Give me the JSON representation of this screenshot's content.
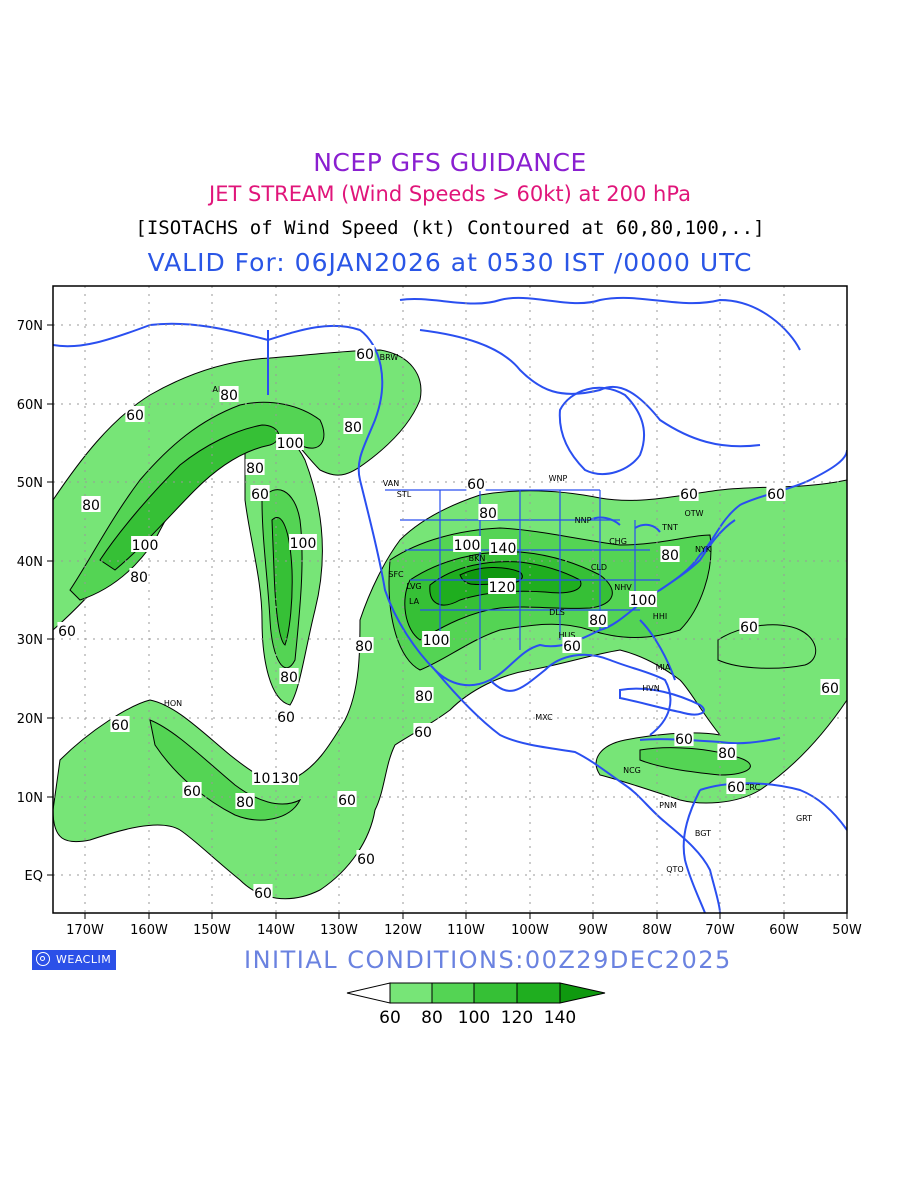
{
  "titles": {
    "line1": "NCEP GFS GUIDANCE",
    "line2": "JET STREAM (Wind Speeds > 60kt) at 200 hPa",
    "line3": "[ISOTACHS of Wind Speed (kt) Contoured at 60,80,100,..]",
    "line4": "VALID For: 06JAN2026 at 0530 IST /0000 UTC"
  },
  "initial_conditions": "INITIAL CONDITIONS:00Z29DEC2025",
  "logo": {
    "text": "WEACLIM",
    "icon": "weaclim-logo-icon"
  },
  "axes": {
    "lon_labels": [
      "170W",
      "160W",
      "150W",
      "140W",
      "130W",
      "120W",
      "110W",
      "100W",
      "90W",
      "80W",
      "70W",
      "60W",
      "50W"
    ],
    "lat_labels": [
      "70N",
      "60N",
      "50N",
      "40N",
      "30N",
      "20N",
      "10N",
      "EQ"
    ]
  },
  "colorbar": {
    "labels": [
      "60",
      "80",
      "100",
      "120",
      "140"
    ],
    "colors": [
      "#ffffff",
      "#77e577",
      "#54d454",
      "#36c036",
      "#1fae1f",
      "#0f990f"
    ]
  },
  "contour_labels": [
    "60",
    "80",
    "100",
    "120",
    "140",
    "130"
  ],
  "stations": [
    "ANC",
    "BRW",
    "VAN",
    "STL",
    "WNP",
    "NNP",
    "OTW",
    "TNT",
    "CHG",
    "NYK",
    "CLD",
    "NHV",
    "ATL",
    "DLS",
    "HHI",
    "HUS",
    "LVG",
    "BKN",
    "SFC",
    "LA",
    "MIA",
    "HVN",
    "MXC",
    "NCG",
    "PNM",
    "BGT",
    "QTO",
    "GRT",
    "CRC",
    "HON"
  ],
  "colors": {
    "land_outline": "#2a4ff0",
    "grid": "#999999",
    "contour": "#000000",
    "title1": "#8a1fd0",
    "title2": "#e0157a",
    "title4": "#2a56e6",
    "init": "#6a82e0"
  }
}
